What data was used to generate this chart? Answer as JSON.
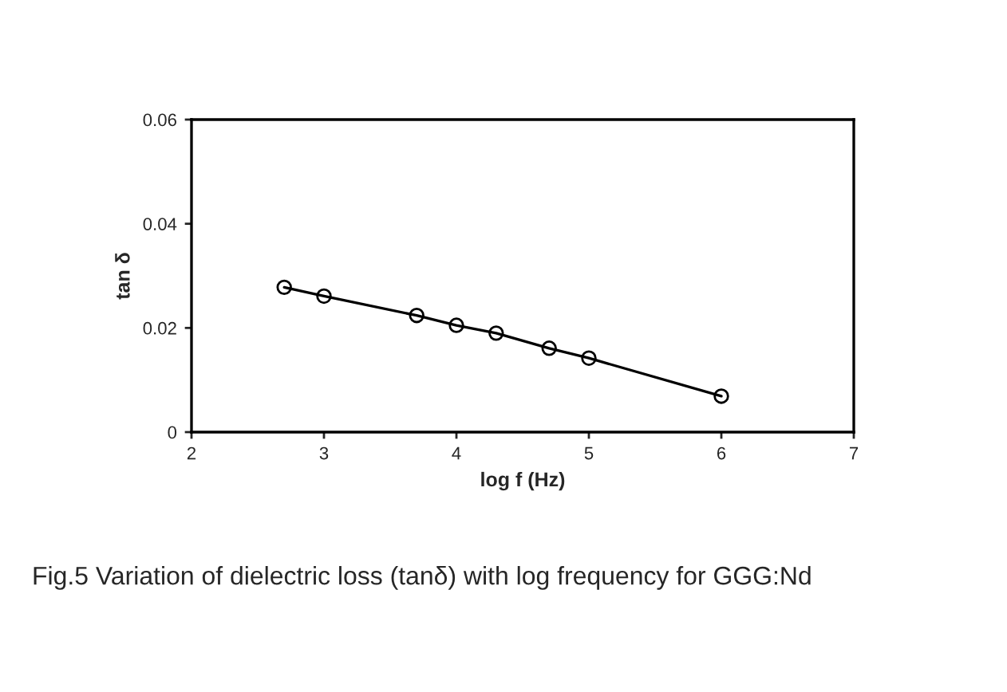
{
  "chart_data": {
    "type": "line",
    "xlabel": "log f (Hz)",
    "ylabel": "tan δ",
    "x": [
      2.7,
      3,
      3.7,
      4,
      4.3,
      4.7,
      5,
      6
    ],
    "series": [
      {
        "color": "#000000",
        "values": [
          0.0278,
          0.0261,
          0.0224,
          0.0205,
          0.019,
          0.0161,
          0.0142,
          0.0069
        ]
      }
    ],
    "xlim": [
      2,
      7
    ],
    "ylim": [
      0,
      0.06
    ],
    "xticks": [
      2,
      3,
      4,
      5,
      6,
      7
    ],
    "yticks": [
      0,
      0.02,
      0.04,
      0.06
    ],
    "marker": "circle",
    "line_style": "solid",
    "grid": false,
    "legend": false,
    "annotations": [
      "Fig.5 Variation of dielectric loss (tanδ) with log frequency for GGG:Nd"
    ]
  }
}
